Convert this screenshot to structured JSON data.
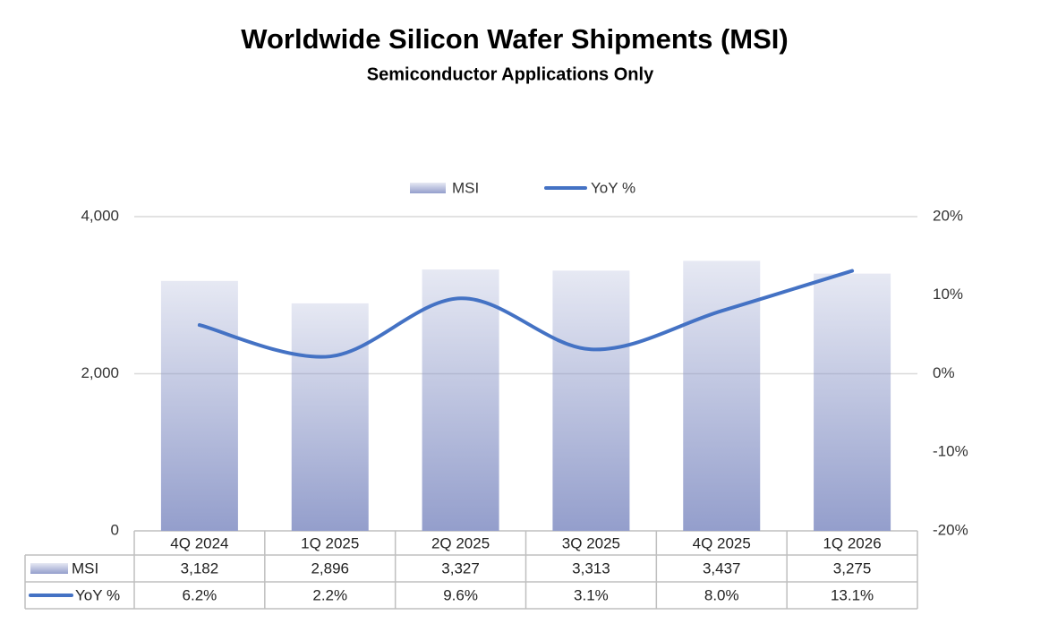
{
  "chart_data": {
    "type": "bar",
    "title": "Worldwide Silicon Wafer Shipments (MSI)",
    "subtitle": "Semiconductor Applications Only",
    "categories": [
      "4Q 2024",
      "1Q 2025",
      "2Q 2025",
      "3Q 2025",
      "4Q 2025",
      "1Q 2026"
    ],
    "series": [
      {
        "name": "MSI",
        "type": "bar",
        "color": "#8e99c9",
        "values": [
          3182,
          2896,
          3327,
          3313,
          3437,
          3275
        ],
        "value_labels": [
          "3,182",
          "2,896",
          "3,327",
          "3,313",
          "3,437",
          "3,275"
        ]
      },
      {
        "name": "YoY %",
        "type": "line",
        "axis": "y2",
        "color": "#4472c4",
        "values": [
          6.2,
          2.2,
          9.6,
          3.1,
          8.0,
          13.1
        ],
        "value_labels": [
          "6.2%",
          "2.2%",
          "9.6%",
          "3.1%",
          "8.0%",
          "13.1%"
        ]
      }
    ],
    "ylim": [
      0,
      4000
    ],
    "yticks": [
      0,
      {
        "value": 2000,
        "label": "2,000"
      },
      {
        "value": 4000,
        "label": "4,000"
      }
    ],
    "y2lim": [
      -20,
      20
    ],
    "y2ticks": [
      {
        "value": -20,
        "label": "-20%"
      },
      {
        "value": -10,
        "label": "-10%"
      },
      {
        "value": 0,
        "label": "0%"
      },
      {
        "value": 10,
        "label": "10%"
      },
      {
        "value": 20,
        "label": "20%"
      }
    ],
    "grid": true,
    "legend": "top"
  }
}
